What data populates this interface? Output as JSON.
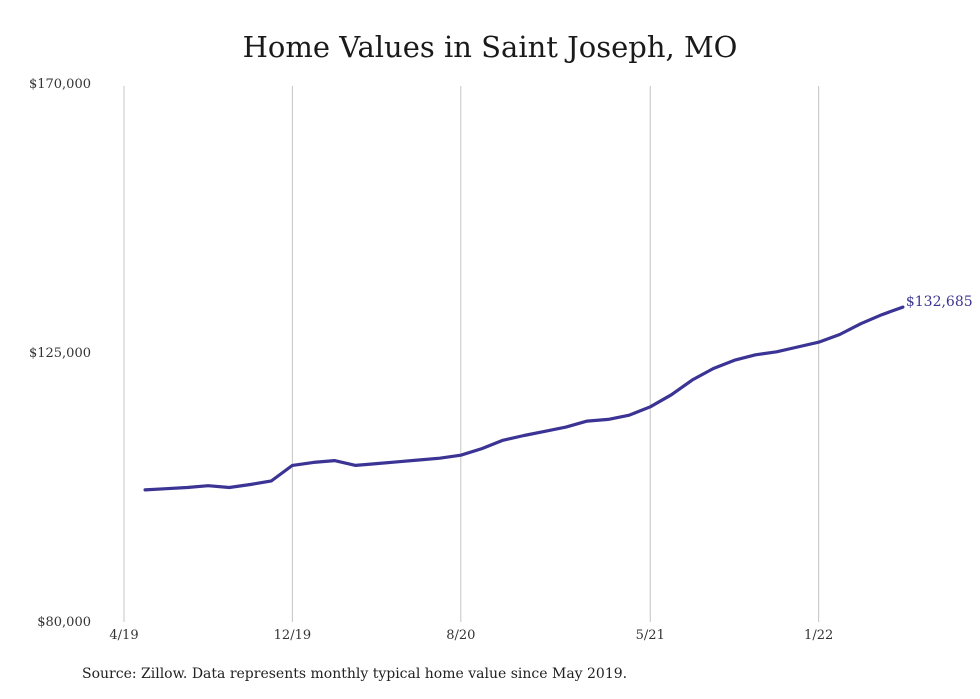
{
  "chart_data": {
    "type": "line",
    "title": "Home Values in Saint Joseph, MO",
    "xlabel": "",
    "ylabel": "",
    "ylim": [
      80000,
      170000
    ],
    "y_ticks": [
      "$170,000",
      "$125,000",
      "$80,000"
    ],
    "y_tick_values": [
      170000,
      125000,
      80000
    ],
    "x_ticks": [
      "4/19",
      "12/19",
      "8/20",
      "5/21",
      "1/22"
    ],
    "grid": "vertical",
    "line_color": "#3b3494",
    "series": [
      {
        "x": [
          "2019-05",
          "2019-06",
          "2019-07",
          "2019-08",
          "2019-09",
          "2019-10",
          "2019-11",
          "2019-12",
          "2020-01",
          "2020-02",
          "2020-03",
          "2020-04",
          "2020-05",
          "2020-06",
          "2020-07",
          "2020-08",
          "2020-09",
          "2020-10",
          "2020-11",
          "2020-12",
          "2021-01",
          "2021-02",
          "2021-03",
          "2021-04",
          "2021-05",
          "2021-06",
          "2021-07",
          "2021-08",
          "2021-09",
          "2021-10",
          "2021-11",
          "2021-12",
          "2022-01",
          "2022-02",
          "2022-03",
          "2022-04",
          "2022-05"
        ],
        "values": [
          102100,
          102300,
          102500,
          102800,
          102500,
          103000,
          103600,
          106200,
          106700,
          107000,
          106200,
          106500,
          106800,
          107100,
          107400,
          107900,
          109000,
          110400,
          111200,
          111900,
          112600,
          113600,
          113900,
          114600,
          116000,
          118000,
          120500,
          122400,
          123800,
          124700,
          125200,
          126000,
          126800,
          128100,
          129900,
          131400,
          132685
        ]
      }
    ],
    "end_label": "$132,685"
  },
  "source_note": "Source: Zillow. Data represents monthly typical home value since May 2019."
}
